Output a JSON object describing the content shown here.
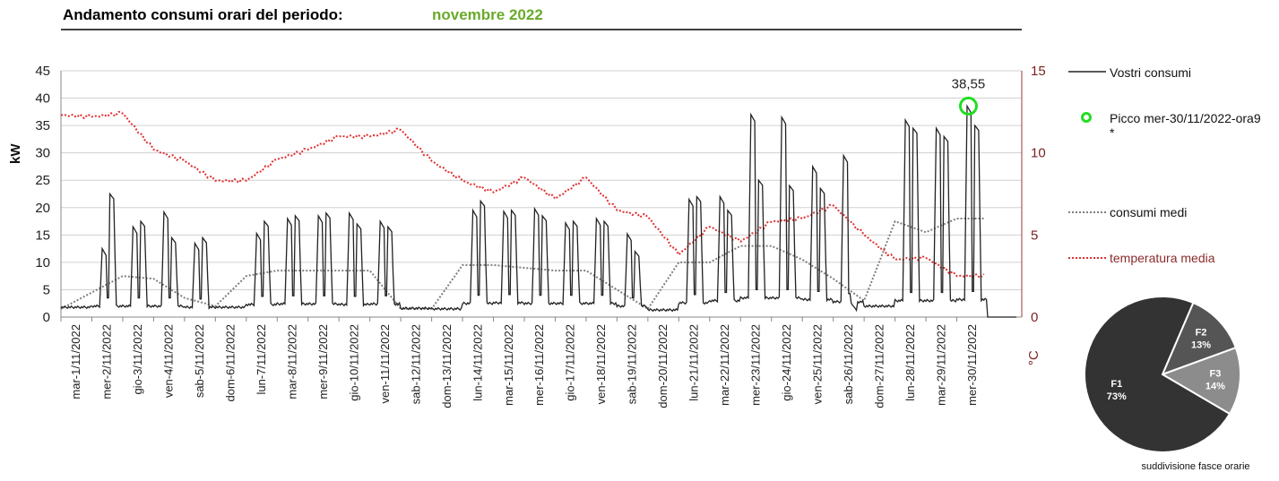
{
  "header": {
    "title": "Andamento consumi orari del periodo:",
    "period": "novembre 2022"
  },
  "colors": {
    "period": "#6aaa2a",
    "consumption": "#222222",
    "average": "#7f7f7f",
    "temperature": "#e03030",
    "peak": "#22dd22",
    "right_axis": "#9b3a3a",
    "pie_f1": "#333333",
    "pie_f2": "#555555",
    "pie_f3": "#8c8c8c"
  },
  "chart_data": [
    {
      "type": "line",
      "ylabel": "kW",
      "y2label": "°C",
      "ylim": [
        0,
        45
      ],
      "y2lim": [
        0,
        15
      ],
      "yticks": [
        0,
        5,
        10,
        15,
        20,
        25,
        30,
        35,
        40,
        45
      ],
      "y2ticks": [
        0,
        5,
        10,
        15
      ],
      "grid": true,
      "categories": [
        "mar-1/11/2022",
        "mer-2/11/2022",
        "gio-3/11/2022",
        "ven-4/11/2022",
        "sab-5/11/2022",
        "dom-6/11/2022",
        "lun-7/11/2022",
        "mar-8/11/2022",
        "mer-9/11/2022",
        "gio-10/11/2022",
        "ven-11/11/2022",
        "sab-12/11/2022",
        "dom-13/11/2022",
        "lun-14/11/2022",
        "mar-15/11/2022",
        "mer-16/11/2022",
        "gio-17/11/2022",
        "ven-18/11/2022",
        "sab-19/11/2022",
        "dom-20/11/2022",
        "lun-21/11/2022",
        "mar-22/11/2022",
        "mer-23/11/2022",
        "gio-24/11/2022",
        "ven-25/11/2022",
        "sab-26/11/2022",
        "dom-27/11/2022",
        "lun-28/11/2022",
        "mar-29/11/2022",
        "mer-30/11/2022"
      ],
      "daily": [
        {
          "base": 1.8,
          "peak": 2,
          "peak2": 2,
          "avg": 1.5,
          "temp": 12.3
        },
        {
          "base": 2,
          "peak": 12.5,
          "peak2": 22.5,
          "avg": 4.5,
          "temp": 12.2
        },
        {
          "base": 2,
          "peak": 16.5,
          "peak2": 17.5,
          "avg": 7.5,
          "temp": 12.4
        },
        {
          "base": 2,
          "peak": 19.2,
          "peak2": 14.5,
          "avg": 7,
          "temp": 10.2
        },
        {
          "base": 1.8,
          "peak": 13.5,
          "peak2": 14.5,
          "avg": 3.5,
          "temp": 9.5
        },
        {
          "base": 1.8,
          "peak": 2.5,
          "peak2": 2.5,
          "avg": 2,
          "temp": 8.3
        },
        {
          "base": 2.3,
          "peak": 15.3,
          "peak2": 17.5,
          "avg": 7.5,
          "temp": 8.3
        },
        {
          "base": 2.4,
          "peak": 18,
          "peak2": 18.5,
          "avg": 8.5,
          "temp": 9.6
        },
        {
          "base": 2.4,
          "peak": 18.5,
          "peak2": 19,
          "avg": 8.5,
          "temp": 10.2
        },
        {
          "base": 2.3,
          "peak": 19,
          "peak2": 17,
          "avg": 8.5,
          "temp": 11
        },
        {
          "base": 2.4,
          "peak": 17.5,
          "peak2": 16.5,
          "avg": 8.5,
          "temp": 11
        },
        {
          "base": 1.6,
          "peak": 2,
          "peak2": 2,
          "avg": 1.5,
          "temp": 11.4
        },
        {
          "base": 1.5,
          "peak": 2,
          "peak2": 2,
          "avg": 1.5,
          "temp": 9.5
        },
        {
          "base": 2.5,
          "peak": 19.5,
          "peak2": 21.2,
          "avg": 9.5,
          "temp": 8.3
        },
        {
          "base": 2.6,
          "peak": 19.3,
          "peak2": 19.5,
          "avg": 9.5,
          "temp": 7.6
        },
        {
          "base": 2.5,
          "peak": 19.8,
          "peak2": 18.5,
          "avg": 9,
          "temp": 8.5
        },
        {
          "base": 2.5,
          "peak": 17.2,
          "peak2": 17.5,
          "avg": 8.5,
          "temp": 7.2
        },
        {
          "base": 2.5,
          "peak": 18,
          "peak2": 17.5,
          "avg": 8.5,
          "temp": 8.5
        },
        {
          "base": 2,
          "peak": 15.2,
          "peak2": 12,
          "avg": 5,
          "temp": 6.5
        },
        {
          "base": 1.3,
          "peak": 2,
          "peak2": 2,
          "avg": 1.5,
          "temp": 6.1
        },
        {
          "base": 2.6,
          "peak": 21.5,
          "peak2": 22,
          "avg": 10,
          "temp": 3.8
        },
        {
          "base": 3,
          "peak": 22,
          "peak2": 19.5,
          "avg": 10,
          "temp": 5.5
        },
        {
          "base": 3.5,
          "peak": 37,
          "peak2": 25,
          "avg": 13,
          "temp": 4.6
        },
        {
          "base": 3.5,
          "peak": 36.5,
          "peak2": 24,
          "avg": 13,
          "temp": 5.8
        },
        {
          "base": 3.2,
          "peak": 27.5,
          "peak2": 23.5,
          "avg": 10.5,
          "temp": 6
        },
        {
          "base": 2.8,
          "peak": 29.5,
          "peak2": 2.5,
          "avg": 7,
          "temp": 6.8
        },
        {
          "base": 2,
          "peak": 2.5,
          "peak2": 2.5,
          "avg": 3,
          "temp": 5
        },
        {
          "base": 3,
          "peak": 36,
          "peak2": 34.5,
          "avg": 17.5,
          "temp": 3.5
        },
        {
          "base": 3,
          "peak": 34.5,
          "peak2": 33,
          "avg": 15.5,
          "temp": 3.6
        },
        {
          "base": 3.2,
          "peak": 38.55,
          "peak2": 35,
          "avg": 18,
          "temp": 2.5
        }
      ],
      "peak_value_label": "38,55",
      "legend": [
        {
          "key": "consumption",
          "label": "Vostri consumi"
        },
        {
          "key": "peak",
          "label": "Picco mer-30/11/2022-ora9",
          "note": "*"
        },
        {
          "key": "average",
          "label": "consumi medi"
        },
        {
          "key": "temperature",
          "label": "temperatura media"
        }
      ]
    },
    {
      "type": "pie",
      "caption": "suddivisione fasce orarie",
      "slices": [
        {
          "name": "F1",
          "value": 73,
          "label": "73%"
        },
        {
          "name": "F2",
          "value": 13,
          "label": "13%"
        },
        {
          "name": "F3",
          "value": 14,
          "label": "14%"
        }
      ]
    }
  ]
}
